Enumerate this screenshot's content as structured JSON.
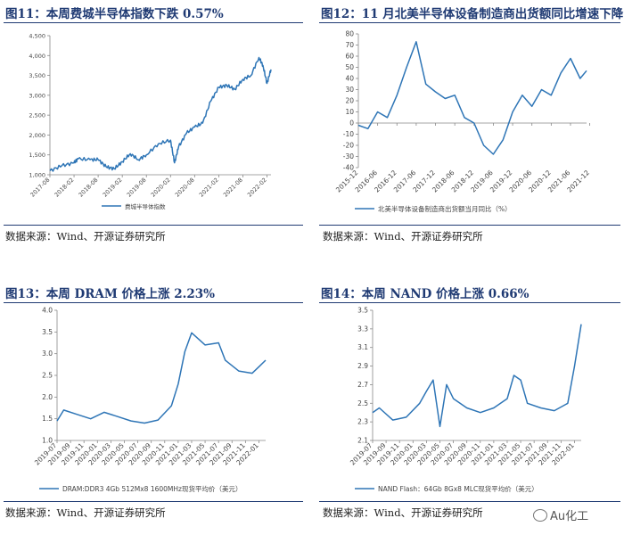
{
  "figures": [
    {
      "title": "图11：本周费城半导体指数下跌 0.57%",
      "source": "数据来源：Wind、开源证券研究所",
      "chart_data": {
        "type": "line",
        "legend": "费城半导体指数",
        "legend_position": "bottom",
        "y_ticks": [
          "1,000",
          "1,500",
          "2,000",
          "2,500",
          "3,000",
          "3,500",
          "4,000",
          "4,500"
        ],
        "ylim": [
          1000,
          4500
        ],
        "x_ticks": [
          "2017-08",
          "2018-02",
          "2018-08",
          "2019-02",
          "2019-08",
          "2020-02",
          "2020-08",
          "2021-02",
          "2021-08",
          "2022-02"
        ],
        "series": [
          {
            "name": "费城半导体指数",
            "x": [
              "2017-08",
              "2017-11",
              "2018-02",
              "2018-03",
              "2018-06",
              "2018-08",
              "2018-10",
              "2018-12",
              "2019-02",
              "2019-04",
              "2019-06",
              "2019-08",
              "2019-11",
              "2020-02",
              "2020-03",
              "2020-04",
              "2020-06",
              "2020-08",
              "2020-10",
              "2020-12",
              "2021-02",
              "2021-04",
              "2021-06",
              "2021-08",
              "2021-10",
              "2021-12",
              "2022-01",
              "2022-02",
              "2022-03"
            ],
            "values": [
              1100,
              1230,
              1300,
              1400,
              1380,
              1380,
              1200,
              1150,
              1330,
              1530,
              1380,
              1500,
              1780,
              1870,
              1300,
              1700,
              2050,
              2200,
              2300,
              2850,
              3200,
              3250,
              3150,
              3400,
              3500,
              3950,
              3750,
              3300,
              3650
            ]
          }
        ]
      }
    },
    {
      "title": "图12：11 月北美半导体设备制造商出货额同比增速下降",
      "source": "数据来源：Wind、开源证券研究所",
      "chart_data": {
        "type": "line",
        "legend": "北美半导体设备制造商出货额当月同比（%）",
        "legend_position": "bottom",
        "y_ticks": [
          "-40",
          "-30",
          "-20",
          "-10",
          "0",
          "10",
          "20",
          "30",
          "40",
          "50",
          "60",
          "70",
          "80"
        ],
        "ylim": [
          -40,
          80
        ],
        "x_ticks": [
          "2015-12",
          "2016-06",
          "2016-12",
          "2017-06",
          "2017-12",
          "2018-06",
          "2018-12",
          "2019-06",
          "2019-12",
          "2020-06",
          "2020-12",
          "2021-06",
          "2021-12"
        ],
        "series": [
          {
            "name": "北美半导体设备制造商出货额当月同比（%）",
            "x": [
              "2015-12",
              "2016-03",
              "2016-06",
              "2016-09",
              "2016-12",
              "2017-03",
              "2017-06",
              "2017-09",
              "2017-12",
              "2018-03",
              "2018-06",
              "2018-09",
              "2018-12",
              "2019-03",
              "2019-06",
              "2019-09",
              "2019-12",
              "2020-03",
              "2020-06",
              "2020-09",
              "2020-12",
              "2021-03",
              "2021-06",
              "2021-09",
              "2021-11"
            ],
            "values": [
              -2,
              -5,
              10,
              5,
              25,
              50,
              73,
              35,
              28,
              22,
              25,
              5,
              0,
              -20,
              -28,
              -15,
              10,
              25,
              15,
              30,
              25,
              45,
              58,
              40,
              47
            ]
          }
        ]
      }
    },
    {
      "title": "图13：本周 DRAM 价格上涨 2.23%",
      "source": "数据来源：Wind、开源证券研究所",
      "chart_data": {
        "type": "line",
        "legend": "DRAM:DDR3 4Gb 512Mx8 1600MHz现货平均价（美元）",
        "legend_position": "bottom",
        "y_ticks": [
          "1.0",
          "1.5",
          "2.0",
          "2.5",
          "3.0",
          "3.5",
          "4.0"
        ],
        "ylim": [
          1.0,
          4.0
        ],
        "x_ticks": [
          "2019-07",
          "2019-09",
          "2019-11",
          "2020-01",
          "2020-03",
          "2020-05",
          "2020-07",
          "2020-09",
          "2020-11",
          "2021-01",
          "2021-03",
          "2021-05",
          "2021-07",
          "2021-09",
          "2021-11",
          "2022-01"
        ],
        "series": [
          {
            "name": "DRAM:DDR3 4Gb 512Mx8 1600MHz现货平均价（美元）",
            "x": [
              "2019-07",
              "2019-08",
              "2019-10",
              "2019-12",
              "2020-02",
              "2020-04",
              "2020-06",
              "2020-08",
              "2020-10",
              "2020-12",
              "2021-01",
              "2021-02",
              "2021-03",
              "2021-05",
              "2021-07",
              "2021-08",
              "2021-10",
              "2021-12",
              "2022-01",
              "2022-02"
            ],
            "values": [
              1.45,
              1.7,
              1.6,
              1.5,
              1.65,
              1.55,
              1.45,
              1.4,
              1.47,
              1.8,
              2.3,
              3.05,
              3.48,
              3.2,
              3.25,
              2.85,
              2.6,
              2.55,
              2.7,
              2.85
            ]
          }
        ]
      }
    },
    {
      "title": "图14：本周 NAND 价格上涨 0.66%",
      "source": "数据来源：Wind、开源证券研究所",
      "chart_data": {
        "type": "line",
        "legend": "NAND Flash：64Gb 8Gx8 MLC现货平均价（美元）",
        "legend_position": "bottom",
        "y_ticks": [
          "2.1",
          "2.3",
          "2.5",
          "2.7",
          "2.9",
          "3.1",
          "3.3",
          "3.5"
        ],
        "ylim": [
          2.1,
          3.5
        ],
        "x_ticks": [
          "2019-07",
          "2019-09",
          "2019-11",
          "2020-01",
          "2020-03",
          "2020-05",
          "2020-07",
          "2020-09",
          "2020-11",
          "2021-01",
          "2021-03",
          "2021-05",
          "2021-07",
          "2021-09",
          "2021-11",
          "2022-01"
        ],
        "series": [
          {
            "name": "NAND Flash：64Gb 8Gx8 MLC现货平均价（美元）",
            "x": [
              "2019-07",
              "2019-08",
              "2019-10",
              "2019-12",
              "2020-02",
              "2020-03",
              "2020-04",
              "2020-05",
              "2020-06",
              "2020-07",
              "2020-09",
              "2020-11",
              "2021-01",
              "2021-03",
              "2021-04",
              "2021-05",
              "2021-06",
              "2021-08",
              "2021-10",
              "2021-12",
              "2022-01",
              "2022-02"
            ],
            "values": [
              2.4,
              2.45,
              2.32,
              2.35,
              2.5,
              2.63,
              2.75,
              2.25,
              2.7,
              2.55,
              2.45,
              2.4,
              2.45,
              2.55,
              2.8,
              2.75,
              2.5,
              2.45,
              2.42,
              2.5,
              2.9,
              3.35
            ]
          }
        ]
      }
    }
  ],
  "watermark": "Au化工",
  "colors": {
    "line": "#2e75b6",
    "title": "#1f3a73",
    "axis": "#888888"
  }
}
